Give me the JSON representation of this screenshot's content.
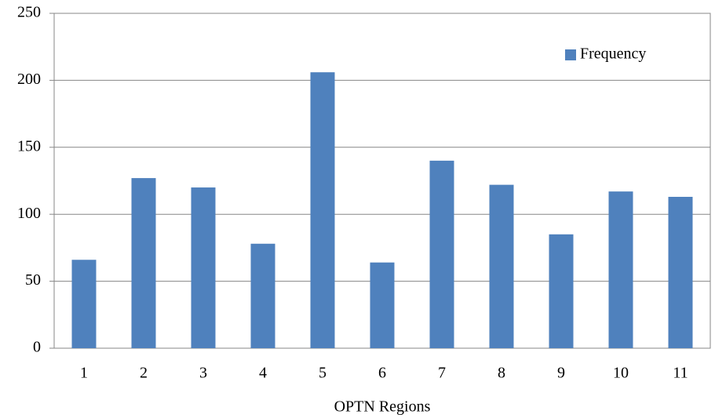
{
  "chart_data": {
    "type": "bar",
    "x_label": "OPTN Regions",
    "categories": [
      "1",
      "2",
      "3",
      "4",
      "5",
      "6",
      "7",
      "8",
      "9",
      "10",
      "11"
    ],
    "series": [
      {
        "name": "Frequency",
        "color": "#4f81bd",
        "values": [
          66,
          127,
          120,
          78,
          206,
          64,
          140,
          122,
          85,
          117,
          113
        ]
      }
    ],
    "ylim": [
      0,
      250
    ],
    "yticks": [
      0,
      50,
      100,
      150,
      200,
      250
    ],
    "grid": true,
    "legend": "upper right"
  }
}
